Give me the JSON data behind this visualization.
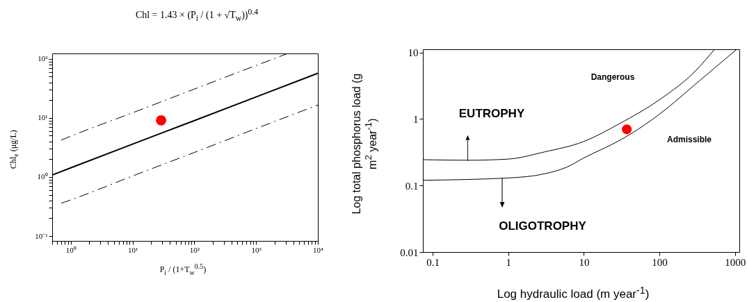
{
  "chart_data": [
    {
      "type": "line",
      "title": "Chl = 1.43 × (P$_{i}$ / (1 + √T$_{w}$))$^{0.4}$",
      "xlabel": "P$_{i}$ / (1+T$_{w}$$^{0.5}$)",
      "ylabel": "Chl$_{e}$ (μg/L)",
      "log": "xy",
      "xlim": [
        0.5,
        10000
      ],
      "ylim": [
        0.083,
        123
      ],
      "xticks": [
        {
          "value": 0.5,
          "label": null
        },
        {
          "value": 0.6,
          "label": null
        },
        {
          "value": 0.7,
          "label": null
        },
        {
          "value": 0.8,
          "label": null
        },
        {
          "value": 0.9,
          "label": null
        },
        {
          "value": 1,
          "label": "10⁰"
        },
        {
          "value": 2,
          "label": null
        },
        {
          "value": 3,
          "label": null
        },
        {
          "value": 4,
          "label": null
        },
        {
          "value": 5,
          "label": null
        },
        {
          "value": 6,
          "label": null
        },
        {
          "value": 7,
          "label": null
        },
        {
          "value": 8,
          "label": null
        },
        {
          "value": 9,
          "label": null
        },
        {
          "value": 10,
          "label": "10¹"
        },
        {
          "value": 20,
          "label": null
        },
        {
          "value": 30,
          "label": null
        },
        {
          "value": 40,
          "label": null
        },
        {
          "value": 50,
          "label": null
        },
        {
          "value": 60,
          "label": null
        },
        {
          "value": 70,
          "label": null
        },
        {
          "value": 80,
          "label": null
        },
        {
          "value": 90,
          "label": null
        },
        {
          "value": 100,
          "label": "10²"
        },
        {
          "value": 200,
          "label": null
        },
        {
          "value": 300,
          "label": null
        },
        {
          "value": 400,
          "label": null
        },
        {
          "value": 500,
          "label": null
        },
        {
          "value": 600,
          "label": null
        },
        {
          "value": 700,
          "label": null
        },
        {
          "value": 800,
          "label": null
        },
        {
          "value": 900,
          "label": null
        },
        {
          "value": 1000,
          "label": "10³"
        },
        {
          "value": 2000,
          "label": null
        },
        {
          "value": 3000,
          "label": null
        },
        {
          "value": 4000,
          "label": null
        },
        {
          "value": 5000,
          "label": null
        },
        {
          "value": 6000,
          "label": null
        },
        {
          "value": 7000,
          "label": null
        },
        {
          "value": 8000,
          "label": null
        },
        {
          "value": 9000,
          "label": null
        },
        {
          "value": 10000,
          "label": "10⁴"
        }
      ],
      "yticks": [
        {
          "value": 0.1,
          "label": "10⁻¹"
        },
        {
          "value": 0.2,
          "label": null
        },
        {
          "value": 0.3,
          "label": null
        },
        {
          "value": 0.4,
          "label": null
        },
        {
          "value": 0.5,
          "label": null
        },
        {
          "value": 0.6,
          "label": null
        },
        {
          "value": 0.7,
          "label": null
        },
        {
          "value": 0.8,
          "label": null
        },
        {
          "value": 0.9,
          "label": null
        },
        {
          "value": 1,
          "label": "10⁰"
        },
        {
          "value": 2,
          "label": null
        },
        {
          "value": 3,
          "label": null
        },
        {
          "value": 4,
          "label": null
        },
        {
          "value": 5,
          "label": null
        },
        {
          "value": 6,
          "label": null
        },
        {
          "value": 7,
          "label": null
        },
        {
          "value": 8,
          "label": null
        },
        {
          "value": 9,
          "label": null
        },
        {
          "value": 10,
          "label": "10¹"
        },
        {
          "value": 20,
          "label": null
        },
        {
          "value": 30,
          "label": null
        },
        {
          "value": 40,
          "label": null
        },
        {
          "value": 50,
          "label": null
        },
        {
          "value": 60,
          "label": null
        },
        {
          "value": 70,
          "label": null
        },
        {
          "value": 80,
          "label": null
        },
        {
          "value": 90,
          "label": null
        },
        {
          "value": 100,
          "label": "10²"
        }
      ],
      "series": [
        {
          "type": "line",
          "line_style": "dashdot",
          "color": "#000000",
          "x": [
            0.7,
            1,
            10,
            100,
            1000,
            3200
          ],
          "values": [
            4.2,
            4.9,
            12.2,
            30.7,
            77,
            122
          ]
        },
        {
          "type": "line",
          "line_style": "solid",
          "color": "#000000",
          "x": [
            0.5,
            1,
            10,
            100,
            1000,
            10000
          ],
          "values": [
            1.08,
            1.43,
            3.6,
            9.0,
            22.6,
            56.9
          ]
        },
        {
          "type": "line",
          "line_style": "dashdot",
          "color": "#000000",
          "x": [
            0.7,
            1,
            10,
            100,
            1000,
            10000
          ],
          "values": [
            0.36,
            0.41,
            1.04,
            2.6,
            6.6,
            16.5
          ]
        },
        {
          "type": "scatter",
          "marker": "circle",
          "color": "#ff0000",
          "x": [
            29
          ],
          "values": [
            9.1
          ]
        }
      ]
    },
    {
      "type": "line",
      "xlabel": "Log hydraulic load (m year$^{-1}$)",
      "ylabel": "Log total phosphorus load (g m$^{2}$ year$^{-1}$)",
      "log": "xy",
      "xlim": [
        0.074,
        1143
      ],
      "ylim": [
        0.01,
        11.2
      ],
      "xticks": [
        0.1,
        1,
        10,
        100,
        1000
      ],
      "yticks": [
        0.01,
        0.1,
        1,
        10
      ],
      "series": [
        {
          "type": "line",
          "line_style": "solid",
          "color": "#000000",
          "x": [
            0.074,
            0.3,
            1,
            3,
            10,
            30,
            100,
            300,
            537
          ],
          "values": [
            0.245,
            0.24,
            0.25,
            0.32,
            0.46,
            0.86,
            1.95,
            5.3,
            11.2
          ]
        },
        {
          "type": "line",
          "line_style": "solid",
          "color": "#000000",
          "x": [
            0.074,
            1,
            3,
            6,
            10,
            30,
            42,
            100,
            300,
            1057
          ],
          "values": [
            0.12,
            0.13,
            0.15,
            0.19,
            0.26,
            0.48,
            0.6,
            1.18,
            3.35,
            11.2
          ]
        },
        {
          "type": "scatter",
          "marker": "circle",
          "color": "#ff0000",
          "x": [
            37
          ],
          "values": [
            0.7
          ]
        }
      ],
      "annotations": [
        "Dangerous",
        "EUTROPHY",
        "Admissible",
        "OLIGOTROPHY"
      ]
    }
  ]
}
